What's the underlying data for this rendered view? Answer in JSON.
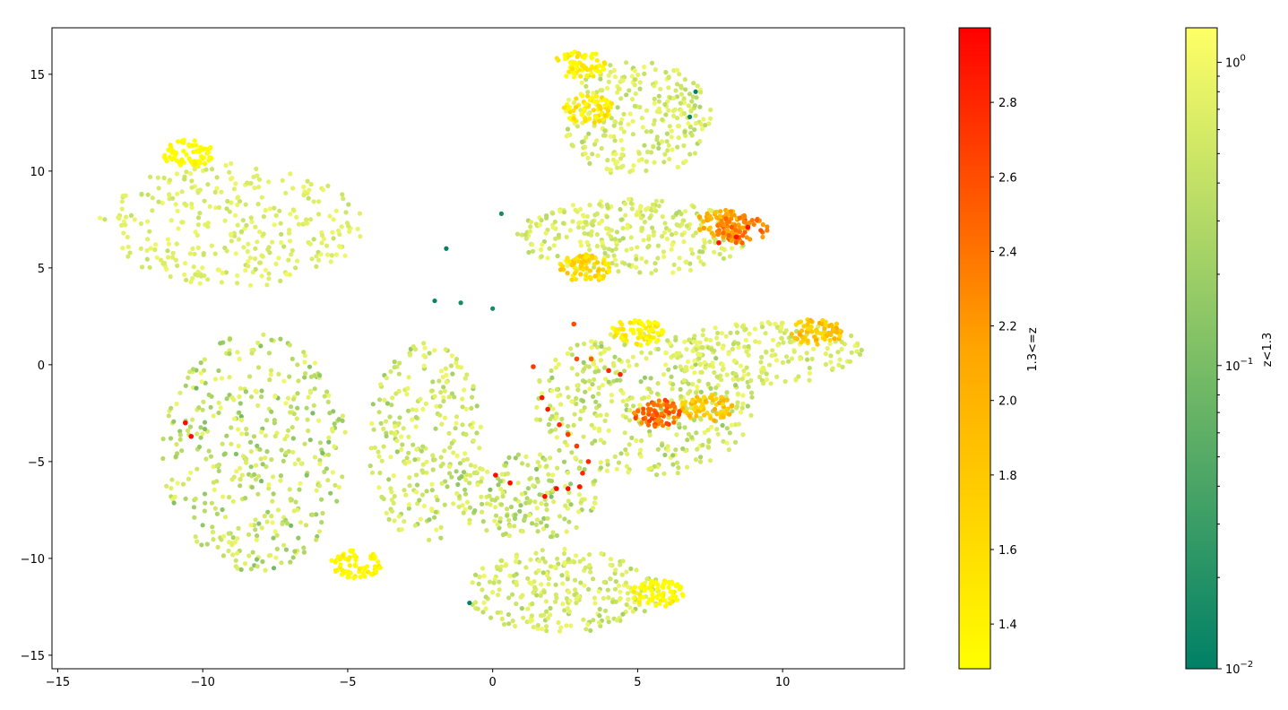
{
  "chart_data": {
    "type": "scatter",
    "title": "",
    "xlabel": "",
    "ylabel": "",
    "xlim": [
      -15.2,
      14.2
    ],
    "ylim": [
      -15.7,
      17.4
    ],
    "xticks": [
      -15,
      -10,
      -5,
      0,
      5,
      10
    ],
    "yticks": [
      -15,
      -10,
      -5,
      0,
      5,
      10,
      15
    ],
    "grid": false,
    "clusters": [
      {
        "name_hint": "upper-left blob",
        "center": [
          -9.0,
          7.2
        ],
        "rx": 4.6,
        "ry": 3.2,
        "n": 320,
        "zlow": [
          0.35,
          1.0
        ],
        "edge": [
          [
            -10.5,
            10.9,
            1.4
          ]
        ]
      },
      {
        "name_hint": "left crescent",
        "center": [
          -8.2,
          -4.5
        ],
        "rx": 3.2,
        "ry": 6.2,
        "n": 420,
        "zlow": [
          0.08,
          1.0
        ],
        "edge": [
          [
            -4.7,
            -10.3,
            1.5
          ]
        ]
      },
      {
        "name_hint": "center branch",
        "center": [
          -2.3,
          -4.0
        ],
        "rx": 2.0,
        "ry": 5.2,
        "n": 260,
        "zlow": [
          0.15,
          1.0
        ]
      },
      {
        "name_hint": "lower-center blob",
        "center": [
          1.2,
          -6.8
        ],
        "rx": 2.6,
        "ry": 2.2,
        "n": 180,
        "zlow": [
          0.1,
          0.9
        ]
      },
      {
        "name_hint": "bottom blob",
        "center": [
          2.4,
          -11.7
        ],
        "rx": 3.4,
        "ry": 2.2,
        "n": 260,
        "zlow": [
          0.2,
          1.0
        ],
        "edge": [
          [
            5.7,
            -11.8,
            1.5
          ]
        ]
      },
      {
        "name_hint": "top cluster",
        "center": [
          5.0,
          12.7
        ],
        "rx": 2.6,
        "ry": 3.0,
        "n": 280,
        "zlow": [
          0.25,
          1.0
        ],
        "edge": [
          [
            3.3,
            13.2,
            1.7
          ],
          [
            3.0,
            15.5,
            1.6
          ]
        ]
      },
      {
        "name_hint": "upper-right arm",
        "center": [
          4.8,
          6.6
        ],
        "rx": 4.0,
        "ry": 2.0,
        "n": 300,
        "zlow": [
          0.25,
          1.0
        ],
        "edge": [
          [
            7.9,
            7.3,
            2.3
          ],
          [
            8.6,
            7.0,
            2.6
          ],
          [
            3.2,
            5.0,
            1.9
          ]
        ]
      },
      {
        "name_hint": "right cluster",
        "center": [
          5.2,
          -2.0
        ],
        "rx": 3.8,
        "ry": 3.8,
        "n": 420,
        "zlow": [
          0.15,
          1.0
        ],
        "edge": [
          [
            5.7,
            -2.5,
            2.7
          ],
          [
            7.4,
            -2.2,
            2.1
          ],
          [
            5.0,
            1.7,
            1.6
          ]
        ]
      },
      {
        "name_hint": "right streaks",
        "center": [
          9.5,
          0.6
        ],
        "rx": 3.5,
        "ry": 1.6,
        "n": 200,
        "zlow": [
          0.3,
          1.0
        ],
        "edge": [
          [
            11.2,
            1.7,
            2.1
          ]
        ]
      }
    ],
    "red_points": [
      [
        -10.6,
        -3.0,
        2.95
      ],
      [
        -10.4,
        -3.7,
        2.95
      ],
      [
        0.1,
        -5.7,
        2.95
      ],
      [
        0.6,
        -6.1,
        2.95
      ],
      [
        1.8,
        -6.8,
        2.95
      ],
      [
        2.2,
        -6.4,
        2.95
      ],
      [
        2.6,
        -6.4,
        2.95
      ],
      [
        3.0,
        -6.3,
        2.9
      ],
      [
        3.1,
        -5.6,
        2.8
      ],
      [
        3.3,
        -5.0,
        2.8
      ],
      [
        2.9,
        -4.2,
        2.7
      ],
      [
        2.6,
        -3.6,
        2.7
      ],
      [
        2.3,
        -3.1,
        2.8
      ],
      [
        1.9,
        -2.3,
        2.9
      ],
      [
        1.7,
        -1.7,
        2.9
      ],
      [
        1.4,
        -0.1,
        2.7
      ],
      [
        2.9,
        0.3,
        2.6
      ],
      [
        3.4,
        0.3,
        2.5
      ],
      [
        4.0,
        -0.3,
        2.8
      ],
      [
        4.4,
        -0.5,
        2.8
      ],
      [
        7.8,
        6.3,
        2.9
      ],
      [
        8.4,
        6.6,
        2.9
      ],
      [
        8.8,
        7.1,
        2.9
      ],
      [
        2.8,
        2.1,
        2.6
      ]
    ],
    "teal_points": [
      [
        -1.6,
        6.0,
        0.01
      ],
      [
        -1.1,
        3.2,
        0.015
      ],
      [
        -2.0,
        3.3,
        0.012
      ],
      [
        0.0,
        2.9,
        0.015
      ],
      [
        -0.8,
        -12.3,
        0.01
      ],
      [
        7.0,
        14.1,
        0.01
      ],
      [
        6.8,
        12.8,
        0.012
      ],
      [
        0.3,
        7.8,
        0.015
      ]
    ],
    "colorbars": [
      {
        "label": "1.3<=z",
        "scale": "linear",
        "range": [
          1.28,
          3.0
        ],
        "ticks": [
          "1.4",
          "1.6",
          "1.8",
          "2.0",
          "2.2",
          "2.4",
          "2.6",
          "2.8"
        ],
        "tick_values": [
          1.4,
          1.6,
          1.8,
          2.0,
          2.2,
          2.4,
          2.6,
          2.8
        ],
        "colors": [
          "#ffff00",
          "#ffa500",
          "#ff0000"
        ]
      },
      {
        "label": "z<1.3",
        "scale": "log",
        "range": [
          0.01,
          1.3
        ],
        "ticks": [
          "10",
          "10",
          "10"
        ],
        "tick_exponents": [
          "−2",
          "−1",
          "0"
        ],
        "tick_values": [
          0.01,
          0.1,
          1.0
        ],
        "colors": [
          "#008066",
          "#6eb45a",
          "#ffff66"
        ]
      }
    ]
  }
}
